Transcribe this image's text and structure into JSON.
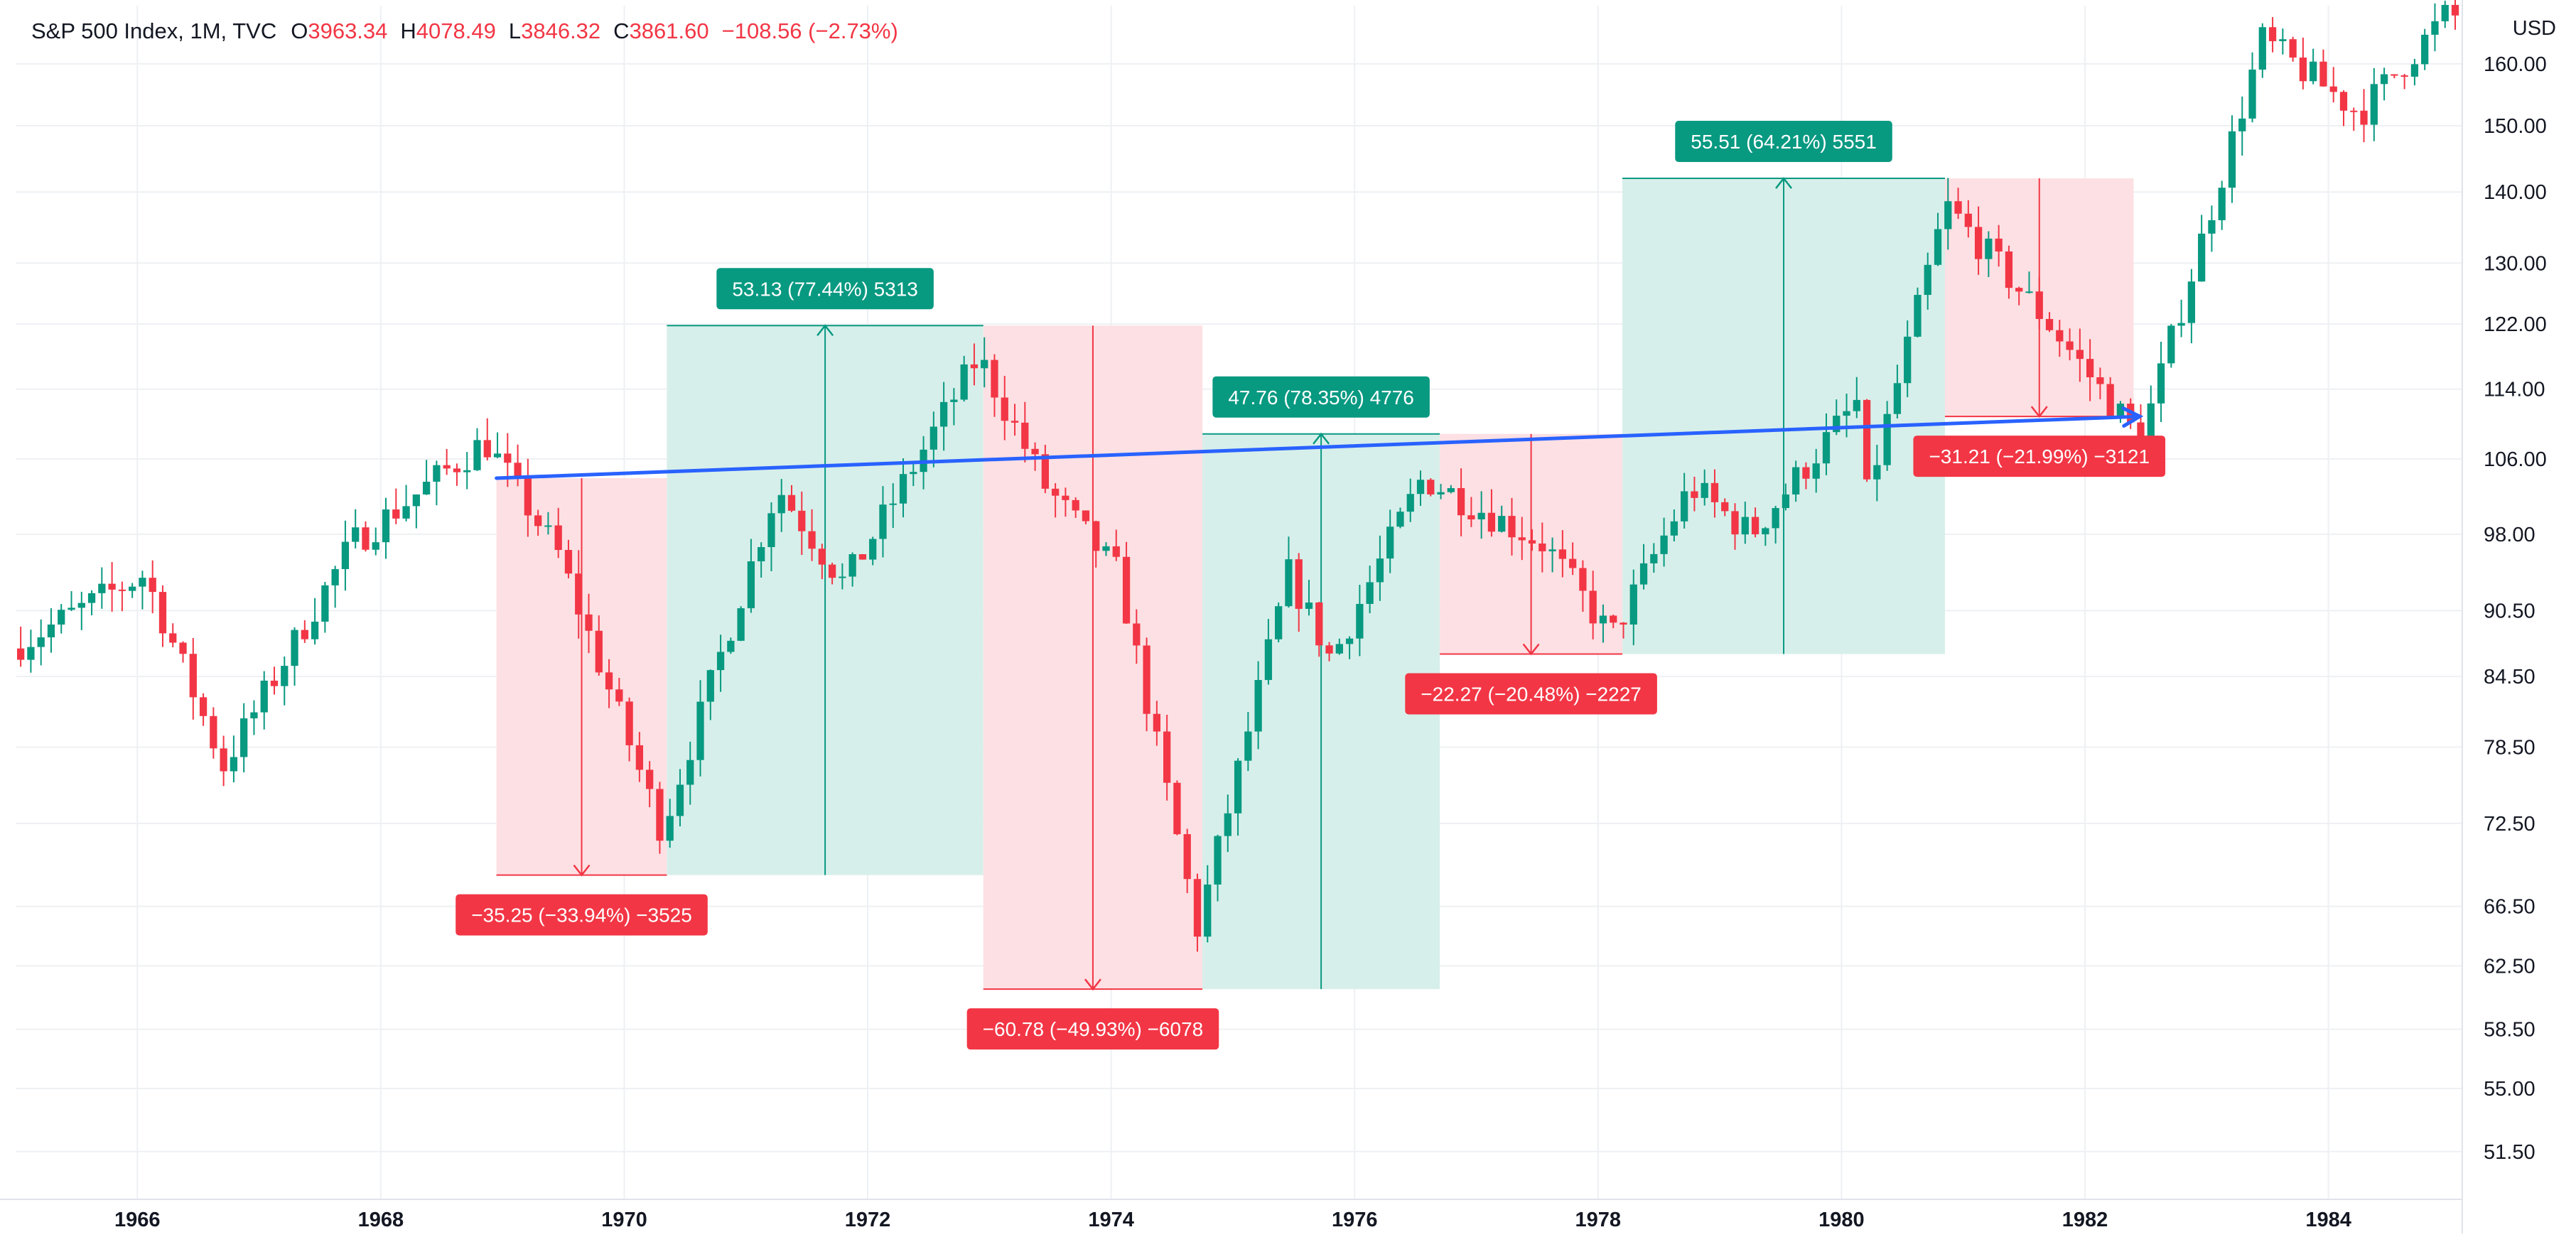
{
  "header": {
    "symbol_line": "S&P 500 Index, 1M, TVC",
    "ohlc": [
      {
        "label": "O",
        "value": "3963.34"
      },
      {
        "label": "H",
        "value": "4078.49"
      },
      {
        "label": "L",
        "value": "3846.32"
      },
      {
        "label": "C",
        "value": "3861.60"
      }
    ],
    "change": "−108.56 (−2.73%)",
    "currency": "USD"
  },
  "colors": {
    "up": "#089981",
    "down": "#f23645",
    "up_zone": "#d7efea",
    "down_zone": "#fde0e3",
    "trend": "#2962ff",
    "axis_text": "#131722",
    "grid": "#eef0f3"
  },
  "chart_data": {
    "type": "candlestick",
    "title": "",
    "xlabel": "",
    "ylabel": "",
    "xlim": [
      1965.0,
      1985.1
    ],
    "ylim": [
      49.0,
      170.0
    ],
    "y_scale": "log",
    "grid": true,
    "x_ticks": [
      {
        "value": 1966,
        "label": "1966"
      },
      {
        "value": 1968,
        "label": "1968"
      },
      {
        "value": 1970,
        "label": "1970"
      },
      {
        "value": 1972,
        "label": "1972"
      },
      {
        "value": 1974,
        "label": "1974"
      },
      {
        "value": 1976,
        "label": "1976"
      },
      {
        "value": 1978,
        "label": "1978"
      },
      {
        "value": 1980,
        "label": "1980"
      },
      {
        "value": 1982,
        "label": "1982"
      },
      {
        "value": 1984,
        "label": "1984"
      }
    ],
    "y_ticks": [
      {
        "value": 160.0,
        "label": "160.00"
      },
      {
        "value": 150.0,
        "label": "150.00"
      },
      {
        "value": 140.0,
        "label": "140.00"
      },
      {
        "value": 130.0,
        "label": "130.00"
      },
      {
        "value": 122.0,
        "label": "122.00"
      },
      {
        "value": 114.0,
        "label": "114.00"
      },
      {
        "value": 106.0,
        "label": "106.00"
      },
      {
        "value": 98.0,
        "label": "98.00"
      },
      {
        "value": 90.5,
        "label": "90.50"
      },
      {
        "value": 84.5,
        "label": "84.50"
      },
      {
        "value": 78.5,
        "label": "78.50"
      },
      {
        "value": 72.5,
        "label": "72.50"
      },
      {
        "value": 66.5,
        "label": "66.50"
      },
      {
        "value": 62.5,
        "label": "62.50"
      },
      {
        "value": 58.5,
        "label": "58.50"
      },
      {
        "value": 55.0,
        "label": "55.00"
      },
      {
        "value": 51.5,
        "label": "51.50"
      }
    ],
    "anchors": [
      [
        1965.0,
        87
      ],
      [
        1966.1,
        94
      ],
      [
        1966.75,
        77
      ],
      [
        1967.8,
        97
      ],
      [
        1968.9,
        108
      ],
      [
        1969.5,
        96
      ],
      [
        1970.35,
        72
      ],
      [
        1971.3,
        103
      ],
      [
        1971.85,
        93
      ],
      [
        1972.95,
        118
      ],
      [
        1973.5,
        103
      ],
      [
        1974.1,
        94
      ],
      [
        1974.75,
        65
      ],
      [
        1975.5,
        94
      ],
      [
        1975.85,
        86
      ],
      [
        1976.6,
        104
      ],
      [
        1977.6,
        97
      ],
      [
        1978.15,
        88
      ],
      [
        1978.8,
        103
      ],
      [
        1979.3,
        98
      ],
      [
        1980.2,
        113
      ],
      [
        1980.25,
        102
      ],
      [
        1980.9,
        138
      ],
      [
        1981.75,
        122
      ],
      [
        1982.5,
        108
      ],
      [
        1983.5,
        164
      ],
      [
        1984.3,
        152
      ],
      [
        1985.0,
        168
      ]
    ],
    "measure_zones": [
      {
        "kind": "down",
        "x0": 1968.95,
        "x1": 1970.35,
        "y_start": 103.9,
        "y_end": 68.7,
        "label": "−35.25 (−33.94%) −3525"
      },
      {
        "kind": "up",
        "x0": 1970.35,
        "x1": 1972.95,
        "y_start": 68.7,
        "y_end": 121.8,
        "label": "53.13 (77.44%) 5313"
      },
      {
        "kind": "down",
        "x0": 1972.95,
        "x1": 1974.75,
        "y_start": 121.8,
        "y_end": 61.0,
        "label": "−60.78 (−49.93%) −6078"
      },
      {
        "kind": "up",
        "x0": 1974.75,
        "x1": 1976.7,
        "y_start": 61.0,
        "y_end": 108.8,
        "label": "47.76 (78.35%) 4776"
      },
      {
        "kind": "down",
        "x0": 1976.7,
        "x1": 1978.2,
        "y_start": 108.8,
        "y_end": 86.5,
        "label": "−22.27 (−20.48%) −2227"
      },
      {
        "kind": "up",
        "x0": 1978.2,
        "x1": 1980.85,
        "y_start": 86.5,
        "y_end": 142.0,
        "label": "55.51 (64.21%) 5551"
      },
      {
        "kind": "down",
        "x0": 1980.85,
        "x1": 1982.4,
        "y_start": 142.0,
        "y_end": 110.8,
        "label": "−31.21 (−21.99%) −3121"
      }
    ],
    "trend_line": {
      "x0": 1968.95,
      "y0": 103.9,
      "x1": 1982.45,
      "y1": 110.8
    }
  }
}
